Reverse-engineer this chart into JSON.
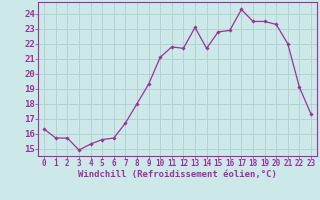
{
  "x": [
    0,
    1,
    2,
    3,
    4,
    5,
    6,
    7,
    8,
    9,
    10,
    11,
    12,
    13,
    14,
    15,
    16,
    17,
    18,
    19,
    20,
    21,
    22,
    23
  ],
  "y": [
    16.3,
    15.7,
    15.7,
    14.9,
    15.3,
    15.6,
    15.7,
    16.7,
    18.0,
    19.3,
    21.1,
    21.8,
    21.7,
    23.1,
    21.7,
    22.8,
    22.9,
    24.3,
    23.5,
    23.5,
    23.3,
    22.0,
    19.1,
    17.3
  ],
  "line_color": "#993399",
  "marker": "D",
  "marker_size": 1.8,
  "bg_color": "#cce8e8",
  "grid_color": "#aacccc",
  "xlabel": "Windchill (Refroidissement éolien,°C)",
  "xlabel_color": "#993399",
  "tick_color": "#993399",
  "spine_color": "#993399",
  "ylim": [
    14.5,
    24.8
  ],
  "xlim": [
    -0.5,
    23.5
  ],
  "yticks": [
    15,
    16,
    17,
    18,
    19,
    20,
    21,
    22,
    23,
    24
  ],
  "xticks": [
    0,
    1,
    2,
    3,
    4,
    5,
    6,
    7,
    8,
    9,
    10,
    11,
    12,
    13,
    14,
    15,
    16,
    17,
    18,
    19,
    20,
    21,
    22,
    23
  ],
  "ytick_fontsize": 6.5,
  "xtick_fontsize": 5.5,
  "xlabel_fontsize": 6.5
}
